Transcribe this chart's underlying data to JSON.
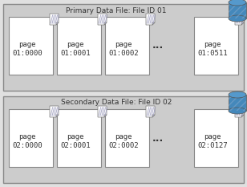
{
  "bg_color": "#e0e0e0",
  "panel_bg": "#cccccc",
  "page_bg": "#ffffff",
  "border_color": "#888888",
  "title_color": "#333333",
  "text_color": "#333333",
  "panel1_title": "Primary Data File: File ID 01",
  "panel2_title": "Secondary Data File: File ID 02",
  "panel1_pages": [
    "page\n01:0000",
    "page\n01:0001",
    "page\n01:0002",
    "page\n01:0511"
  ],
  "panel2_pages": [
    "page\n02:0000",
    "page\n02:0001",
    "page\n02:0002",
    "page\n02:0127"
  ],
  "dots": "...",
  "cyl_top": "#5599cc",
  "cyl_body": "#4488bb",
  "cyl_shadow": "#2255aa"
}
